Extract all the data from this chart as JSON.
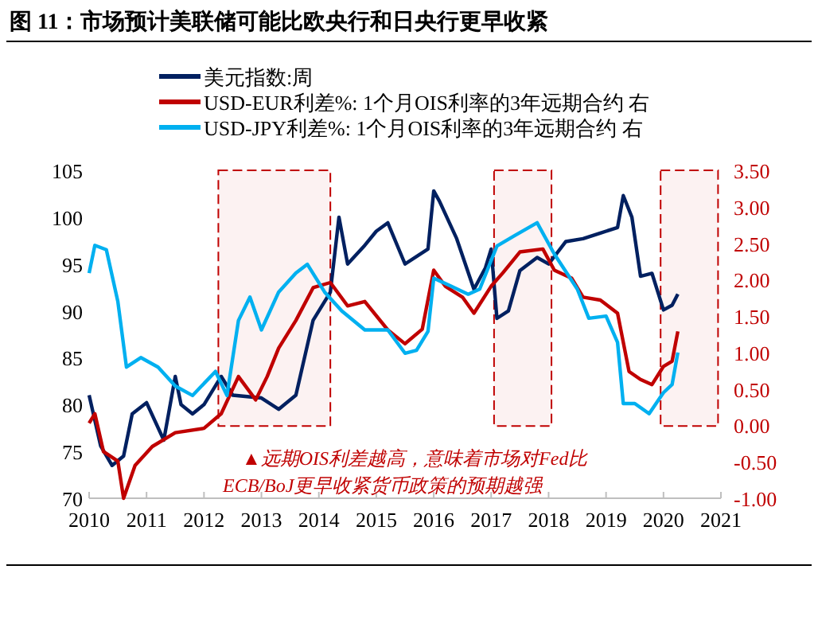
{
  "chart_data": {
    "type": "line",
    "title": "图 11：市场预计美联储可能比欧央行和日央行更早收紧",
    "xlim": [
      2010,
      2021
    ],
    "xticks": [
      2010,
      2011,
      2012,
      2013,
      2014,
      2015,
      2016,
      2017,
      2018,
      2019,
      2020,
      2021
    ],
    "ylim": [
      70,
      105
    ],
    "yticks": [
      70,
      75,
      80,
      85,
      90,
      95,
      100,
      105
    ],
    "y2lim": [
      -1,
      3.5
    ],
    "y2ticks": [
      {
        "value": -1,
        "label": "-1.00"
      },
      {
        "value": -0.5,
        "label": "-0.50"
      },
      {
        "value": 0,
        "label": "0.00"
      },
      {
        "value": 0.5,
        "label": "0.50"
      },
      {
        "value": 1,
        "label": "1.00"
      },
      {
        "value": 1.5,
        "label": "1.50"
      },
      {
        "value": 2,
        "label": "2.00"
      },
      {
        "value": 2.5,
        "label": "2.50"
      },
      {
        "value": 3,
        "label": "3.00"
      },
      {
        "value": 3.5,
        "label": "3.50"
      }
    ],
    "legend": "top left",
    "grid": false,
    "series": [
      {
        "name": "美元指数:周",
        "color": "#002060",
        "x": [
          2010.0,
          2010.2,
          2010.4,
          2010.6,
          2010.75,
          2011.0,
          2011.3,
          2011.5,
          2011.6,
          2011.8,
          2012.0,
          2012.3,
          2012.5,
          2013.0,
          2013.3,
          2013.6,
          2013.9,
          2014.2,
          2014.35,
          2014.5,
          2014.8,
          2015.0,
          2015.2,
          2015.5,
          2015.9,
          2016.0,
          2016.1,
          2016.4,
          2016.7,
          2016.9,
          2017.0,
          2017.1,
          2017.3,
          2017.5,
          2017.8,
          2018.0,
          2018.3,
          2018.6,
          2018.9,
          2019.2,
          2019.3,
          2019.45,
          2019.6,
          2019.8,
          2020.0,
          2020.15,
          2020.25
        ],
        "values": [
          81,
          75.6,
          73.5,
          74.5,
          79,
          80.2,
          76.2,
          83,
          80,
          79,
          80,
          83,
          81,
          80.7,
          79.5,
          81,
          89,
          92,
          100,
          95,
          97,
          98.5,
          99.4,
          95,
          96.6,
          102.8,
          101.7,
          97.7,
          92.3,
          94.6,
          96.6,
          89.2,
          90,
          94.3,
          95.7,
          95,
          97.4,
          97.7,
          98.3,
          98.9,
          102.3,
          100,
          93.7,
          94,
          90.1,
          90.6,
          91.8
        ]
      },
      {
        "name": "USD-EUR利差%: 1个月OIS利率的3年远期合约 右",
        "color": "#c00000",
        "axis": "y2",
        "x": [
          2010.0,
          2010.1,
          2010.25,
          2010.5,
          2010.6,
          2010.8,
          2011.1,
          2011.5,
          2012.0,
          2012.3,
          2012.6,
          2012.9,
          2013.1,
          2013.3,
          2013.6,
          2013.9,
          2014.2,
          2014.5,
          2014.8,
          2015.2,
          2015.5,
          2015.8,
          2016.0,
          2016.2,
          2016.5,
          2016.7,
          2017.0,
          2017.2,
          2017.5,
          2017.9,
          2018.1,
          2018.4,
          2018.6,
          2018.9,
          2019.2,
          2019.4,
          2019.6,
          2019.8,
          2020.0,
          2020.15,
          2020.25
        ],
        "values": [
          0.03,
          0.16,
          -0.36,
          -0.49,
          -1.0,
          -0.55,
          -0.29,
          -0.1,
          -0.04,
          0.16,
          0.67,
          0.35,
          0.67,
          1.06,
          1.44,
          1.89,
          1.96,
          1.64,
          1.7,
          1.31,
          1.12,
          1.32,
          2.13,
          1.91,
          1.76,
          1.54,
          1.91,
          2.09,
          2.38,
          2.42,
          2.13,
          2.02,
          1.76,
          1.72,
          1.54,
          0.74,
          0.63,
          0.56,
          0.81,
          0.88,
          1.29
        ]
      },
      {
        "name": "USD-JPY利差%: 1个月OIS利率的3年远期合约 右",
        "color": "#00b0f0",
        "axis": "y2",
        "x": [
          2010.0,
          2010.1,
          2010.3,
          2010.5,
          2010.65,
          2010.9,
          2011.2,
          2011.5,
          2011.8,
          2012.2,
          2012.4,
          2012.6,
          2012.8,
          2013.0,
          2013.3,
          2013.6,
          2013.8,
          2014.1,
          2014.4,
          2014.8,
          2015.2,
          2015.5,
          2015.7,
          2015.9,
          2016.0,
          2016.3,
          2016.6,
          2016.8,
          2017.1,
          2017.4,
          2017.8,
          2018.1,
          2018.5,
          2018.7,
          2019.0,
          2019.2,
          2019.3,
          2019.5,
          2019.75,
          2020.0,
          2020.15,
          2020.25
        ],
        "values": [
          2.09,
          2.47,
          2.41,
          1.7,
          0.8,
          0.93,
          0.8,
          0.54,
          0.41,
          0.74,
          0.41,
          1.44,
          1.76,
          1.31,
          1.83,
          2.09,
          2.21,
          1.83,
          1.57,
          1.31,
          1.31,
          0.99,
          1.03,
          1.29,
          2.02,
          1.91,
          1.8,
          1.87,
          2.46,
          2.6,
          2.78,
          2.35,
          1.87,
          1.47,
          1.5,
          1.14,
          0.3,
          0.3,
          0.16,
          0.45,
          0.56,
          1.0
        ]
      }
    ],
    "bands": [
      {
        "axis": "x",
        "from": 2012.25,
        "to": 2014.2,
        "color": "#c00000"
      },
      {
        "axis": "x",
        "from": 2017.05,
        "to": 2018.05,
        "color": "#c00000"
      },
      {
        "axis": "x",
        "from": 2019.95,
        "to": 2020.95,
        "color": "#c00000"
      }
    ],
    "annotations": [
      "▲远期OIS利差越高，意味着市场对Fed比",
      "ECB/BoJ更早收紧货币政策的预期越强"
    ]
  }
}
